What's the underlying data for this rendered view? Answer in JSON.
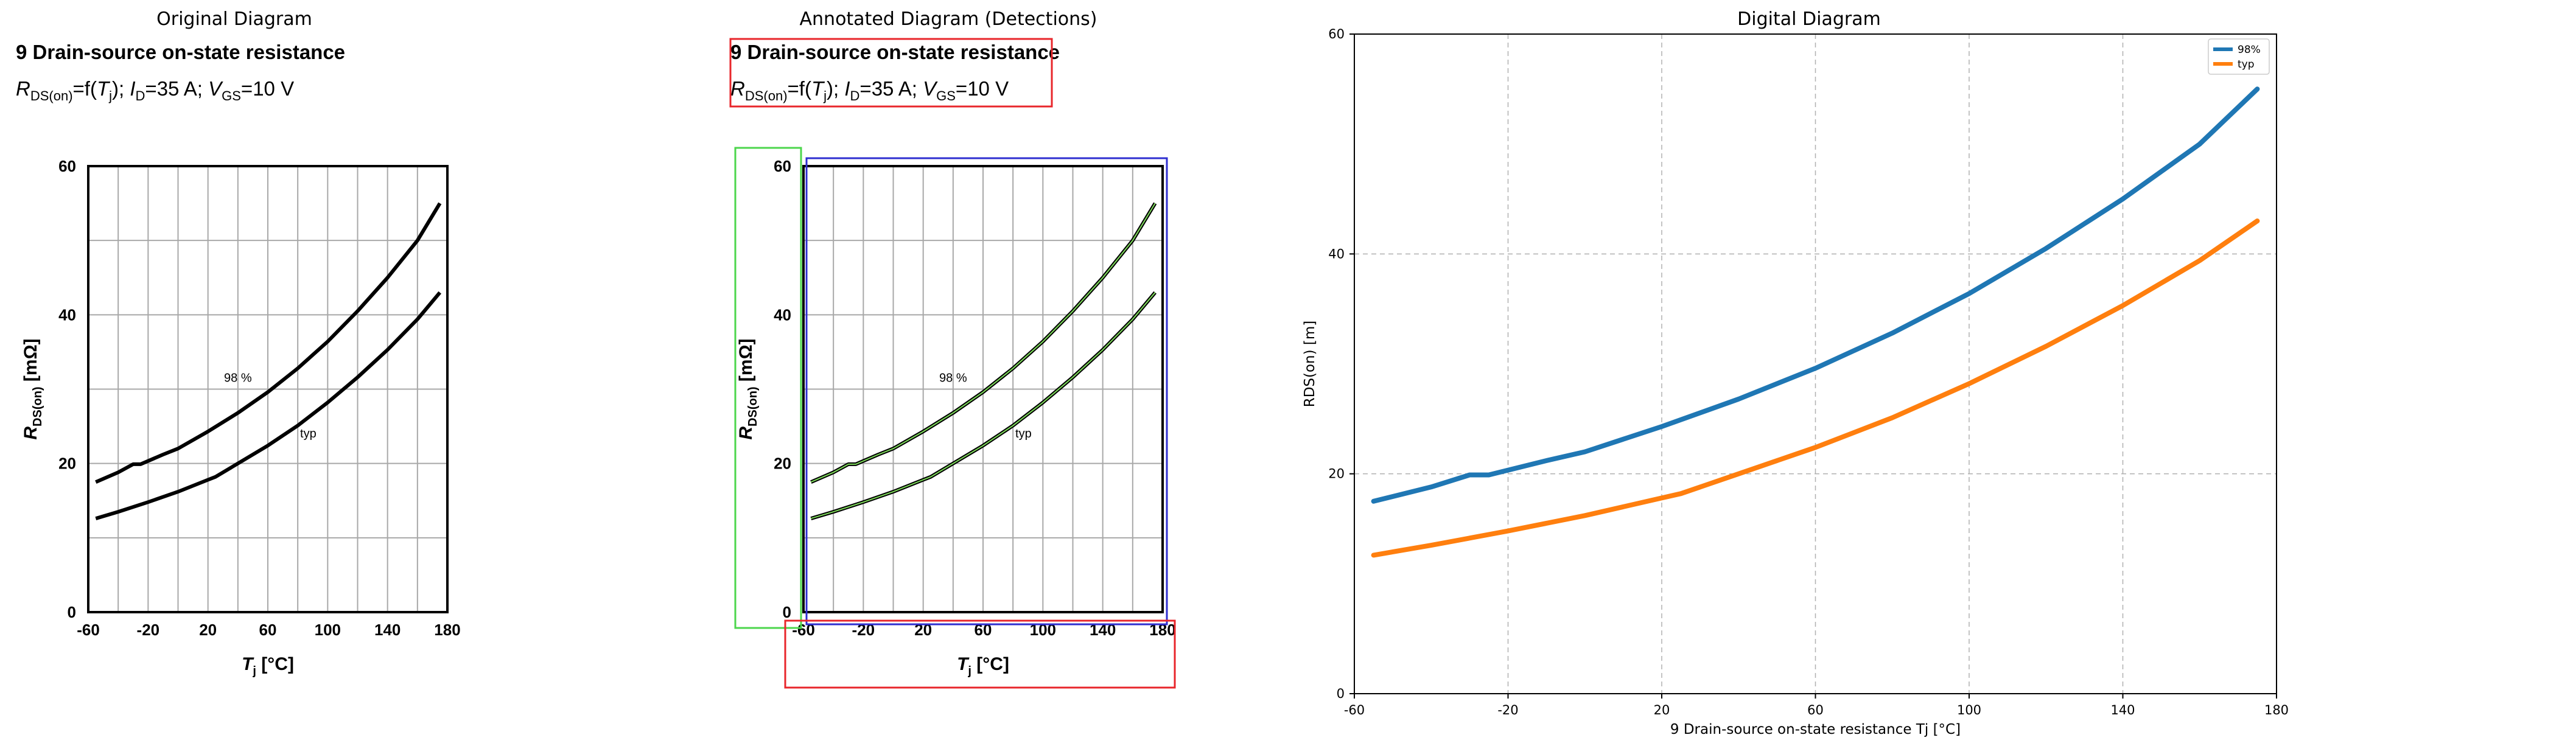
{
  "panels": {
    "original_title": "Original Diagram",
    "annotated_title": "Annotated Diagram (Detections)",
    "digital_title": "Digital Diagram"
  },
  "datasheet": {
    "title": "9 Drain-source on-state resistance",
    "subtitle_rds": "R",
    "subtitle_rds_sub": "DS(on)",
    "subtitle_f": "=f(",
    "subtitle_tj": "T",
    "subtitle_tj_sub": "j",
    "subtitle_id_pre": "); ",
    "subtitle_id": "I",
    "subtitle_id_sub": "D",
    "subtitle_id_val": "=35 A; ",
    "subtitle_vgs": "V",
    "subtitle_vgs_sub": "GS",
    "subtitle_vgs_val": "=10 V",
    "ylabel_main": "R",
    "ylabel_sub": "DS(on)",
    "ylabel_unit": " [mΩ]",
    "xlabel_main": "T",
    "xlabel_sub": "j",
    "xlabel_unit": " [°C]",
    "curve_label_98": "98 %",
    "curve_label_typ": "typ",
    "x_ticks": [
      "-60",
      "-20",
      "20",
      "60",
      "100",
      "140",
      "180"
    ],
    "y_ticks": [
      "0",
      "20",
      "40",
      "60"
    ]
  },
  "chart_data": {
    "type": "line",
    "title": "Digital Diagram",
    "xlabel": "9 Drain-source on-state resistance Tj [°C]",
    "ylabel": "RDS(on) [m]",
    "xlim": [
      -60,
      180
    ],
    "ylim": [
      0,
      60
    ],
    "x_ticks": [
      "-60",
      "-20",
      "20",
      "60",
      "100",
      "140",
      "180"
    ],
    "y_ticks": [
      "0",
      "20",
      "40",
      "60"
    ],
    "grid": true,
    "legend_position": "top-right",
    "series": [
      {
        "name": "98%",
        "color": "#1f77b4",
        "x": [
          -55,
          -40,
          -30,
          -25,
          -10,
          0,
          20,
          40,
          60,
          80,
          100,
          120,
          140,
          160,
          175
        ],
        "y": [
          17.5,
          18.8,
          19.9,
          19.9,
          21.2,
          22.0,
          24.3,
          26.8,
          29.6,
          32.8,
          36.4,
          40.5,
          45.0,
          50.0,
          55.0
        ]
      },
      {
        "name": "typ",
        "color": "#ff7f0e",
        "x": [
          -55,
          -40,
          -20,
          0,
          20,
          25,
          40,
          60,
          80,
          100,
          120,
          140,
          160,
          175
        ],
        "y": [
          12.6,
          13.5,
          14.8,
          16.2,
          17.8,
          18.2,
          20.0,
          22.4,
          25.1,
          28.2,
          31.6,
          35.3,
          39.4,
          43.0
        ]
      }
    ]
  }
}
